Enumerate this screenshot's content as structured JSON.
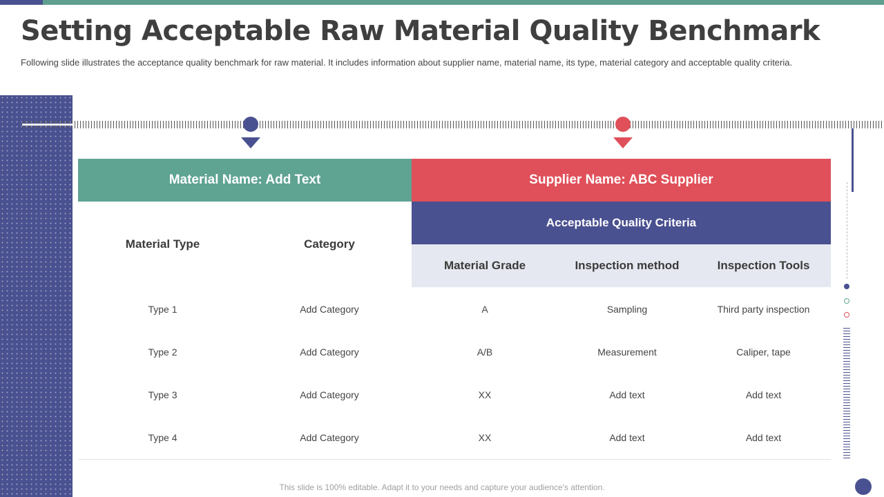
{
  "title": "Setting Acceptable Raw Material Quality Benchmark",
  "subtitle": "Following slide illustrates the acceptance quality benchmark for raw material. It includes information about supplier name, material name, its type, material category and acceptable quality criteria.",
  "table": {
    "material_header": "Material Name: Add Text",
    "supplier_header": "Supplier Name: ABC Supplier",
    "criteria_header": "Acceptable Quality Criteria",
    "columns": [
      "Material Type",
      "Category",
      "Material Grade",
      "Inspection method",
      "Inspection Tools"
    ],
    "rows": [
      [
        "Type 1",
        "Add Category",
        "A",
        "Sampling",
        "Third party inspection"
      ],
      [
        "Type 2",
        "Add Category",
        "A/B",
        "Measurement",
        "Caliper, tape"
      ],
      [
        "Type 3",
        "Add Category",
        "XX",
        "Add text",
        "Add text"
      ],
      [
        "Type 4",
        "Add Category",
        "XX",
        "Add text",
        "Add text"
      ]
    ]
  },
  "footer": "This slide is 100% editable. Adapt it to your needs and capture your audience's attention.",
  "colors": {
    "teal": "#5fa393",
    "red": "#e0505a",
    "navy": "#4a5190",
    "light_band": "#e6e8f1"
  }
}
